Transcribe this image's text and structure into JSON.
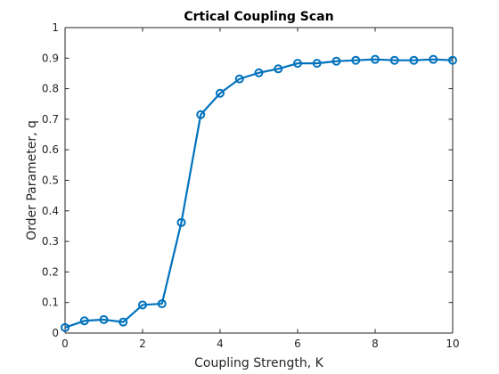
{
  "chart_data": {
    "type": "line",
    "title": "Crtical Coupling Scan",
    "xlabel": "Coupling Strength, K",
    "ylabel": "Order Parameter, q",
    "xlim": [
      0,
      10
    ],
    "ylim": [
      0,
      1
    ],
    "xticks": [
      0,
      2,
      4,
      6,
      8,
      10
    ],
    "yticks": [
      0,
      0.1,
      0.2,
      0.3,
      0.4,
      0.5,
      0.6,
      0.7,
      0.8,
      0.9,
      1
    ],
    "grid": false,
    "marker": "circle",
    "line_color": "#0072BD",
    "series": [
      {
        "x": [
          0,
          0.5,
          1,
          1.5,
          2,
          2.5,
          3,
          3.5,
          4,
          4.5,
          5,
          5.5,
          6,
          6.5,
          7,
          7.5,
          8,
          8.5,
          9,
          9.5,
          10
        ],
        "values": [
          0.018,
          0.04,
          0.044,
          0.036,
          0.092,
          0.096,
          0.362,
          0.715,
          0.785,
          0.832,
          0.852,
          0.865,
          0.883,
          0.883,
          0.89,
          0.893,
          0.896,
          0.893,
          0.893,
          0.896,
          0.893
        ]
      }
    ]
  }
}
